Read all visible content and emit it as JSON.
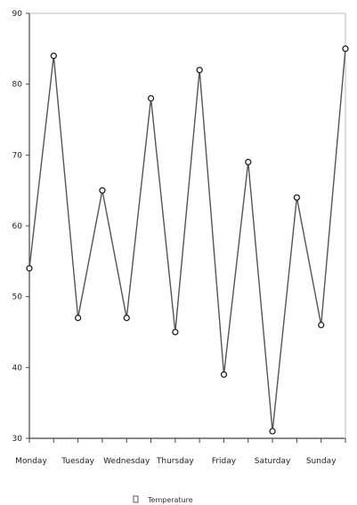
{
  "chart_data": {
    "type": "line",
    "title": "",
    "xlabel": "",
    "ylabel": "",
    "categories": [
      "Monday",
      "Tuesday",
      "Wednesday",
      "Thursday",
      "Friday",
      "Saturday",
      "Sunday"
    ],
    "y_ticks": [
      30,
      40,
      50,
      60,
      70,
      80,
      90
    ],
    "ylim": [
      30,
      90
    ],
    "x": [
      0,
      0.5,
      1,
      1.5,
      2,
      2.5,
      3,
      3.5,
      4,
      4.5,
      5,
      5.5,
      6,
      6.5
    ],
    "series": [
      {
        "name": "Temperature",
        "color": "#555555",
        "values": [
          54,
          84,
          47,
          65,
          47,
          78,
          45,
          82,
          39,
          69,
          31,
          64,
          46,
          85
        ]
      }
    ],
    "grid": false,
    "legend": "bottom-center"
  }
}
